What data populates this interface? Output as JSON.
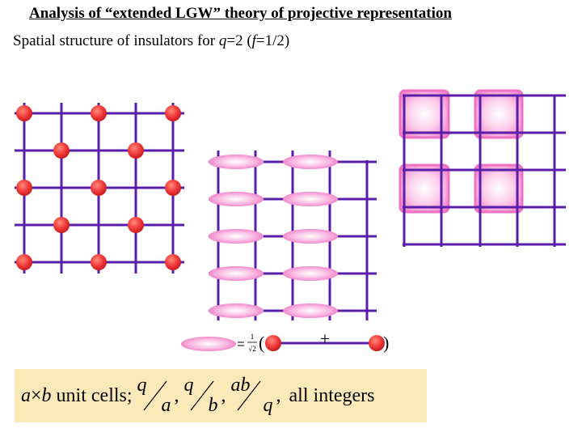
{
  "title": "Analysis of “extended LGW” theory of projective representation",
  "subtitle": {
    "prefix": "Spatial structure of insulators for ",
    "q_symbol": "q",
    "q_value": "=2 (",
    "f_symbol": "f",
    "f_value": "=1/2)"
  },
  "legend_equation": {
    "prefactor_num": "1",
    "prefactor_den": "√2",
    "open_paren": "(",
    "plus": "+",
    "close_paren": ")"
  },
  "note": {
    "a": "a",
    "times": "×",
    "b": "b",
    "unit_cells": " unit cells;",
    "frac1": {
      "num": "q",
      "den": "a"
    },
    "frac2": {
      "num": "q",
      "den": "b"
    },
    "frac3": {
      "num": "ab",
      "den": "q"
    },
    "comma": ",",
    "tail": "all integers"
  },
  "colors": {
    "lattice": "#5a1fa8",
    "site": "#f0393a",
    "bond_pink": "#f27fc7",
    "plaquette_pink": "#f58fd1",
    "note_bg": "#fbe9b9"
  }
}
